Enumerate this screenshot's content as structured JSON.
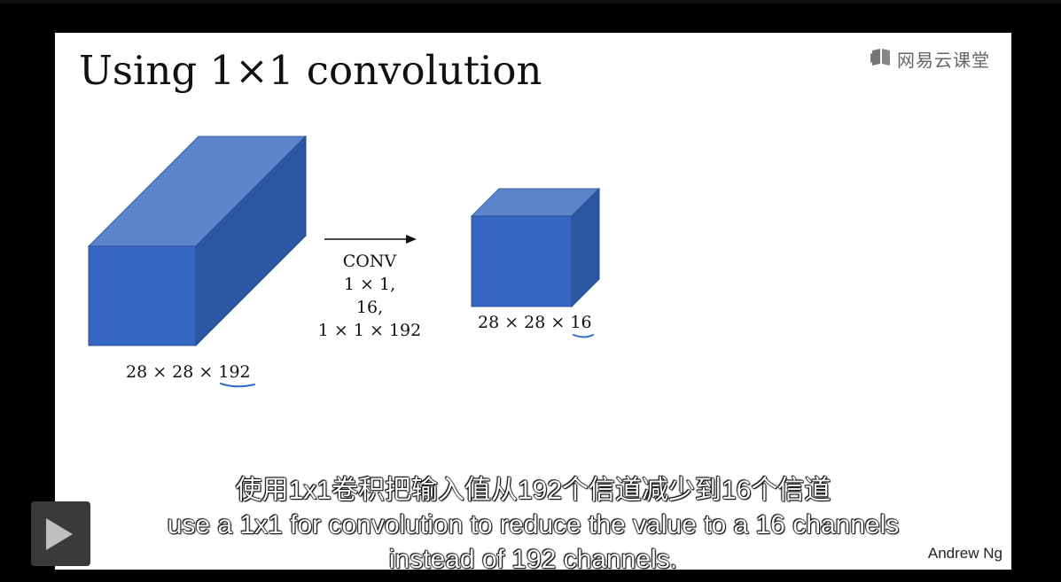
{
  "slide": {
    "title": "Using 1×1 convolution",
    "brand": "网易云课堂",
    "author": "Andrew Ng"
  },
  "figure": {
    "input_volume_label": "28 × 28 × 192",
    "operation": {
      "line1": "CONV",
      "line2": "1 × 1,",
      "line3": "16,",
      "line4": "1 × 1 × 192"
    },
    "output_volume_label": "28 × 28 × 16",
    "colors": {
      "front": "#3566c4",
      "top": "#5b84cc",
      "side": "#2b57a3",
      "annotation": "#2a6fc9"
    }
  },
  "subtitles": {
    "line_zh": "使用1x1卷积把输入值从192个信道减少到16个信道",
    "line_en1": "use a 1x1 for convolution to reduce the value to a 16 channels",
    "line_en2": "instead of 192 channels."
  },
  "player": {
    "play_icon": "play-icon"
  }
}
